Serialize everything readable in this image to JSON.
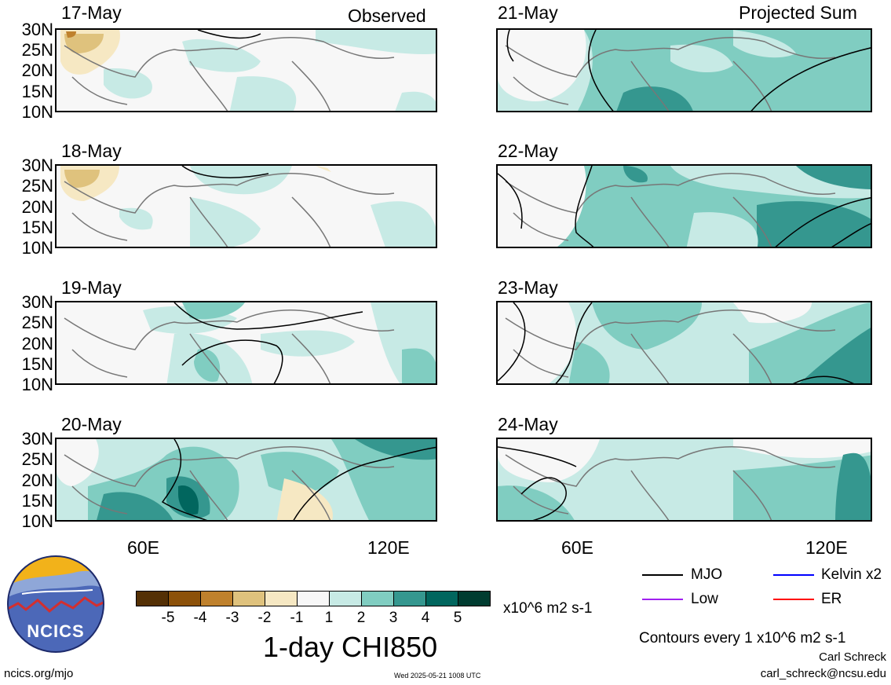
{
  "headers": {
    "left": "Observed",
    "right": "Projected Sum"
  },
  "panels": [
    {
      "date": "17-May",
      "column": "observed"
    },
    {
      "date": "18-May",
      "column": "observed"
    },
    {
      "date": "19-May",
      "column": "observed"
    },
    {
      "date": "20-May",
      "column": "observed"
    },
    {
      "date": "21-May",
      "column": "projected"
    },
    {
      "date": "22-May",
      "column": "projected"
    },
    {
      "date": "23-May",
      "column": "projected"
    },
    {
      "date": "24-May",
      "column": "projected"
    }
  ],
  "lat_labels": [
    "30N",
    "25N",
    "20N",
    "15N",
    "10N"
  ],
  "lon_labels": [
    "60E",
    "120E"
  ],
  "colorbar": {
    "colors": [
      "#543005",
      "#8c510a",
      "#bf812d",
      "#dfc27d",
      "#f6e8c3",
      "#f7f7f7",
      "#c7eae5",
      "#80cdc1",
      "#35978f",
      "#01665e",
      "#003c30"
    ],
    "labels": [
      "-5",
      "-4",
      "-3",
      "-2",
      "-1",
      "1",
      "2",
      "3",
      "4",
      "5"
    ],
    "units": "x10^6 m2 s-1",
    "title": "1-day CHI850"
  },
  "legend": {
    "mjo": {
      "label": "MJO",
      "color": "#000000"
    },
    "kelvin": {
      "label": "Kelvin x2",
      "color": "#0000ff"
    },
    "low": {
      "label": "Low",
      "color": "#a020f0"
    },
    "er": {
      "label": "ER",
      "color": "#ff0000"
    },
    "contour_note": "Contours every 1 x10^6 m2 s-1"
  },
  "credits": {
    "author": "Carl Schreck",
    "email": "carl_schreck@ncsu.edu",
    "url": "ncics.org/mjo",
    "timestamp": "Wed 2025-05-21 1008 UTC",
    "logo_text": "NCICS"
  }
}
